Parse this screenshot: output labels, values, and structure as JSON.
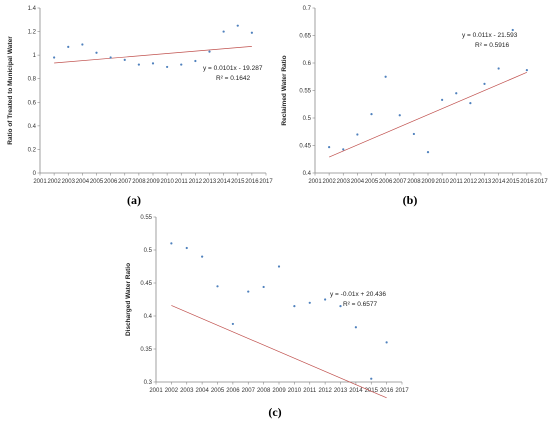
{
  "chart_data": [
    {
      "id": "a",
      "type": "scatter",
      "panel_label": "(a)",
      "xlabel": "",
      "ylabel": "Ratio of Treated to Municipal Water",
      "xlim": [
        2001,
        2017
      ],
      "ylim": [
        0,
        1.4
      ],
      "x_ticks": [
        "2001",
        "2002",
        "2003",
        "2004",
        "2005",
        "2006",
        "2007",
        "2008",
        "2009",
        "2010",
        "2011",
        "2012",
        "2013",
        "2014",
        "2015",
        "2016",
        "2017"
      ],
      "y_ticks": [
        "0",
        "0.2",
        "0.4",
        "0.6",
        "0.8",
        "1",
        "1.2",
        "1.4"
      ],
      "x": [
        2002,
        2003,
        2004,
        2005,
        2006,
        2007,
        2008,
        2009,
        2010,
        2011,
        2012,
        2013,
        2014,
        2015,
        2016
      ],
      "y": [
        0.98,
        1.07,
        1.09,
        1.02,
        0.98,
        0.96,
        0.92,
        0.93,
        0.9,
        0.92,
        0.95,
        1.03,
        1.2,
        1.25,
        1.19
      ],
      "trendline": {
        "slope": 0.0101,
        "intercept": -19.287
      },
      "equation": "y = 0.0101x - 19.287",
      "r2": "R² = 0.1642",
      "grid": false
    },
    {
      "id": "b",
      "type": "scatter",
      "panel_label": "(b)",
      "xlabel": "",
      "ylabel": "Reclaimed Water Ratio",
      "xlim": [
        2001,
        2017
      ],
      "ylim": [
        0.4,
        0.7
      ],
      "x_ticks": [
        "2001",
        "2002",
        "2003",
        "2004",
        "2005",
        "2006",
        "2007",
        "2008",
        "2009",
        "2010",
        "2011",
        "2012",
        "2013",
        "2014",
        "2015",
        "2016",
        "2017"
      ],
      "y_ticks": [
        "0.4",
        "0.45",
        "0.5",
        "0.55",
        "0.6",
        "0.65",
        "0.7"
      ],
      "x": [
        2002,
        2003,
        2004,
        2005,
        2006,
        2007,
        2008,
        2009,
        2010,
        2011,
        2012,
        2013,
        2014,
        2015,
        2016
      ],
      "y": [
        0.447,
        0.443,
        0.47,
        0.507,
        0.575,
        0.505,
        0.471,
        0.438,
        0.533,
        0.545,
        0.527,
        0.562,
        0.59,
        0.66,
        0.587
      ],
      "trendline": {
        "slope": 0.011,
        "intercept": -21.593
      },
      "equation": "y = 0.011x - 21.593",
      "r2": "R² = 0.5916",
      "grid": false
    },
    {
      "id": "c",
      "type": "scatter",
      "panel_label": "(c)",
      "xlabel": "",
      "ylabel": "Discharged  Water Ratio",
      "xlim": [
        2001,
        2017
      ],
      "ylim": [
        0.3,
        0.55
      ],
      "x_ticks": [
        "2001",
        "2002",
        "2003",
        "2004",
        "2005",
        "2006",
        "2007",
        "2008",
        "2009",
        "2010",
        "2011",
        "2012",
        "2013",
        "2014",
        "2015",
        "2016",
        "2017"
      ],
      "y_ticks": [
        "0.3",
        "0.35",
        "0.4",
        "0.45",
        "0.5",
        "0.55"
      ],
      "x": [
        2002,
        2003,
        2004,
        2005,
        2006,
        2007,
        2008,
        2009,
        2010,
        2011,
        2012,
        2013,
        2014,
        2015,
        2016
      ],
      "y": [
        0.51,
        0.503,
        0.49,
        0.445,
        0.388,
        0.437,
        0.444,
        0.475,
        0.415,
        0.42,
        0.425,
        0.415,
        0.383,
        0.305,
        0.36
      ],
      "trendline": {
        "slope": -0.01,
        "intercept": 20.436
      },
      "equation": "y = -0.01x + 20.436",
      "r2": "R² = 0.6577",
      "grid": false
    }
  ],
  "colors": {
    "point": "#4f81bd",
    "trendline": "#c0504d",
    "axis": "#888888",
    "text": "#222222"
  }
}
